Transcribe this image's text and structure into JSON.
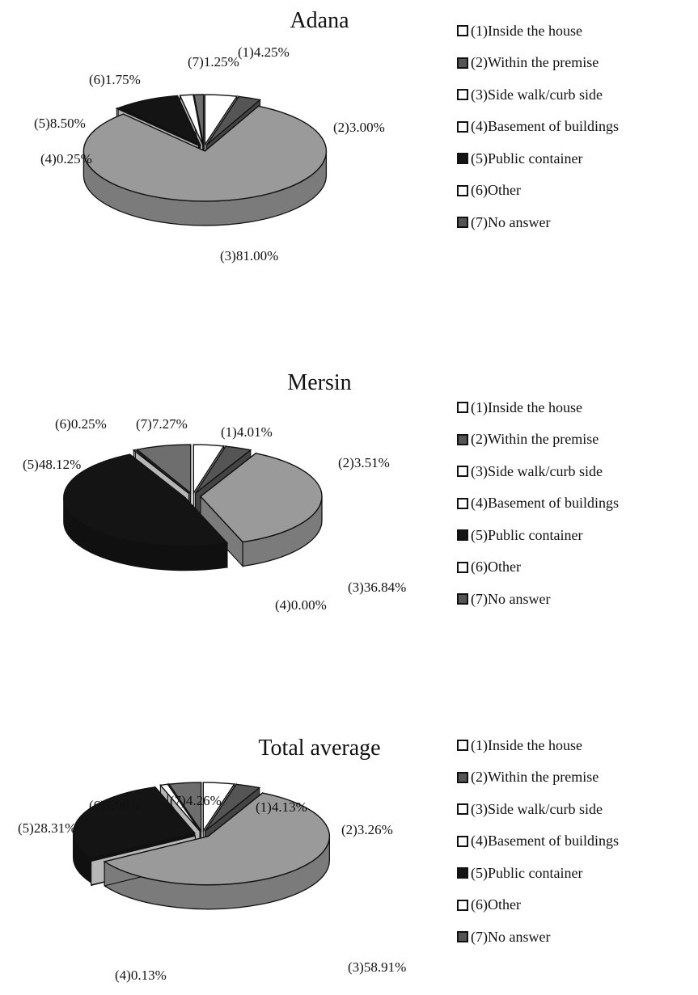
{
  "colors": {
    "inside": "#ffffff",
    "within": "#555555",
    "sidewalk": "#9a9a9a",
    "basement": "#ffffff",
    "public": "#141414",
    "other": "#ffffff",
    "noanswer": "#6e6e6e",
    "outline": "#111111"
  },
  "chart_data": [
    {
      "type": "pie",
      "title": "Adana",
      "labels": [
        "(1)Inside the house",
        "(2)Within the premise",
        "(3)Side walk/curb side",
        "(4)Basement of buildings",
        "(5)Public container",
        "(6)Other",
        "(7)No answer"
      ],
      "values": [
        4.25,
        3.0,
        81.0,
        0.25,
        8.5,
        1.75,
        1.25
      ],
      "data_labels": [
        "(1)4.25%",
        "(2)3.00%",
        "(3)81.00%",
        "(4)0.25%",
        "(5)8.50%",
        "(6)1.75%",
        "(7)1.25%"
      ],
      "legend": "right"
    },
    {
      "type": "pie",
      "title": "Mersin",
      "labels": [
        "(1)Inside the house",
        "(2)Within the premise",
        "(3)Side walk/curb side",
        "(4)Basement of buildings",
        "(5)Public container",
        "(6)Other",
        "(7)No answer"
      ],
      "values": [
        4.01,
        3.51,
        36.84,
        0.0,
        48.12,
        0.25,
        7.27
      ],
      "data_labels": [
        "(1)4.01%",
        "(2)3.51%",
        "(3)36.84%",
        "(4)0.00%",
        "(5)48.12%",
        "(6)0.25%",
        "(7)7.27%"
      ],
      "legend": "right"
    },
    {
      "type": "pie",
      "title": "Total average",
      "labels": [
        "(1)Inside the house",
        "(2)Within the premise",
        "(3)Side walk/curb side",
        "(4)Basement of buildings",
        "(5)Public container",
        "(6)Other",
        "(7)No answer"
      ],
      "values": [
        4.13,
        3.26,
        58.91,
        0.13,
        28.31,
        1.0,
        4.26
      ],
      "data_labels": [
        "(1)4.13%",
        "(2)3.26%",
        "(3)58.91%",
        "(4)0.13%",
        "(5)28.31%",
        "(6)1.00%",
        "(7)4.26%"
      ],
      "legend": "right"
    }
  ]
}
